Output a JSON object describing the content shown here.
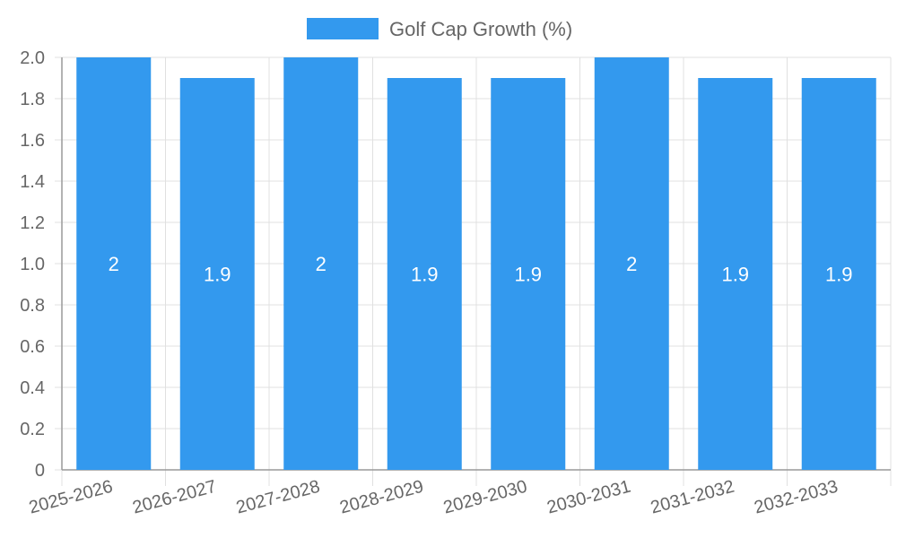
{
  "chart_data": {
    "type": "bar",
    "categories": [
      "2025-2026",
      "2026-2027",
      "2027-2028",
      "2028-2029",
      "2029-2030",
      "2030-2031",
      "2031-2032",
      "2032-2033"
    ],
    "series": [
      {
        "name": "Golf Cap Growth (%)",
        "values": [
          2,
          1.9,
          2,
          1.9,
          1.9,
          2,
          1.9,
          1.9
        ],
        "color": "#3399ee"
      }
    ],
    "data_labels": [
      "2",
      "1.9",
      "2",
      "1.9",
      "1.9",
      "2",
      "1.9",
      "1.9"
    ],
    "y_ticks": [
      "0",
      "0.2",
      "0.4",
      "0.6",
      "0.8",
      "1.0",
      "1.2",
      "1.4",
      "1.6",
      "1.8",
      "2.0"
    ],
    "ylim": [
      0,
      2
    ],
    "grid": true,
    "legend_position": "top-center",
    "colors": {
      "bar": "#3399ee",
      "grid": "#e0e0e0",
      "axis": "#999999",
      "text": "#666666",
      "label": "#ffffff"
    }
  }
}
